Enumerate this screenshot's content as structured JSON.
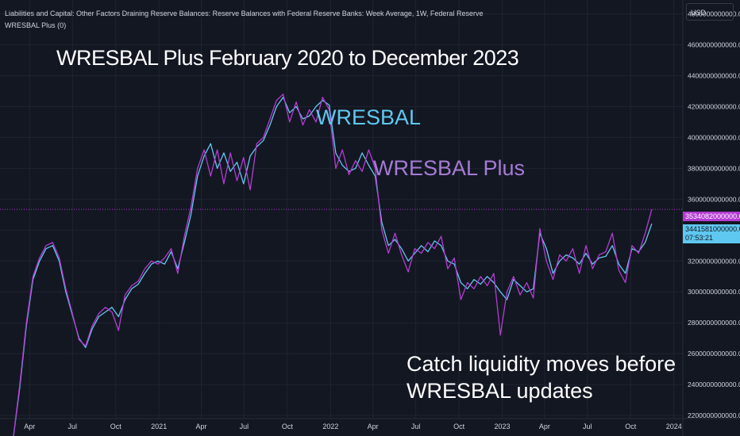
{
  "header": {
    "series_title": "Liabilities and Capital: Other Factors Draining Reserve Balances: Reserve Balances with Federal Reserve Banks: Week Average, 1W, Federal Reserve",
    "indicator_title": "WRESBAL Plus (0)"
  },
  "annotations": {
    "title": "WRESBAL Plus February 2020 to December 2023",
    "wresbal_label": "WRESBAL",
    "plus_label": "WRESBAL Plus",
    "tagline_line1": "Catch liquidity moves before",
    "tagline_line2": "WRESBAL updates"
  },
  "price_scale": {
    "currency": "USD",
    "plus_last_value": "3534082000000.0000",
    "wresbal_last_value": "3441581000000.0000",
    "countdown": "07:53:21"
  },
  "colors": {
    "background": "#131722",
    "wresbal": "#5fc8f0",
    "plus": "#b43cd2",
    "plus_label": "#a57bd5",
    "grid": "#1f2431"
  },
  "chart_data": {
    "type": "line",
    "title": "WRESBAL Plus February 2020 to December 2023",
    "x_ticks": [
      "Apr",
      "Jul",
      "Oct",
      "2021",
      "Apr",
      "Jul",
      "Oct",
      "2022",
      "Apr",
      "Jul",
      "Oct",
      "2023",
      "Apr",
      "Jul",
      "Oct",
      "2024"
    ],
    "x_tick_dates": [
      "2020-04-01",
      "2020-07-01",
      "2020-10-01",
      "2021-01-01",
      "2021-04-01",
      "2021-07-01",
      "2021-10-01",
      "2022-01-01",
      "2022-04-01",
      "2022-07-01",
      "2022-10-01",
      "2023-01-01",
      "2023-04-01",
      "2023-07-01",
      "2023-10-01",
      "2024-01-01"
    ],
    "y_ticks": [
      "2200000000000.0000",
      "2400000000000.0000",
      "2600000000000.0000",
      "2800000000000.0000",
      "3000000000000.0000",
      "3200000000000.0000",
      "3400000000000.0000",
      "3600000000000.0000",
      "3800000000000.0000",
      "4000000000000.0000",
      "4200000000000.0000",
      "4400000000000.0000",
      "4600000000000.0000",
      "4800000000000.0000"
    ],
    "ylim": [
      2180000000000,
      4890000000000
    ],
    "grid": true,
    "series": [
      {
        "name": "WRESBAL",
        "color": "#5fc8f0",
        "points": [
          [
            "2020-02-26",
            2050000000000
          ],
          [
            "2020-03-11",
            2380000000000
          ],
          [
            "2020-03-25",
            2780000000000
          ],
          [
            "2020-04-08",
            3080000000000
          ],
          [
            "2020-04-22",
            3200000000000
          ],
          [
            "2020-05-06",
            3280000000000
          ],
          [
            "2020-05-20",
            3300000000000
          ],
          [
            "2020-06-03",
            3200000000000
          ],
          [
            "2020-06-17",
            3000000000000
          ],
          [
            "2020-07-01",
            2850000000000
          ],
          [
            "2020-07-15",
            2700000000000
          ],
          [
            "2020-07-29",
            2640000000000
          ],
          [
            "2020-08-12",
            2760000000000
          ],
          [
            "2020-08-26",
            2840000000000
          ],
          [
            "2020-09-09",
            2870000000000
          ],
          [
            "2020-09-23",
            2900000000000
          ],
          [
            "2020-10-07",
            2840000000000
          ],
          [
            "2020-10-21",
            2950000000000
          ],
          [
            "2020-11-04",
            3020000000000
          ],
          [
            "2020-11-18",
            3050000000000
          ],
          [
            "2020-12-02",
            3120000000000
          ],
          [
            "2020-12-16",
            3180000000000
          ],
          [
            "2020-12-30",
            3200000000000
          ],
          [
            "2021-01-13",
            3180000000000
          ],
          [
            "2021-01-27",
            3260000000000
          ],
          [
            "2021-02-10",
            3150000000000
          ],
          [
            "2021-02-24",
            3320000000000
          ],
          [
            "2021-03-10",
            3500000000000
          ],
          [
            "2021-03-24",
            3750000000000
          ],
          [
            "2021-04-07",
            3880000000000
          ],
          [
            "2021-04-21",
            3960000000000
          ],
          [
            "2021-05-05",
            3800000000000
          ],
          [
            "2021-05-19",
            3900000000000
          ],
          [
            "2021-06-02",
            3780000000000
          ],
          [
            "2021-06-16",
            3840000000000
          ],
          [
            "2021-06-30",
            3700000000000
          ],
          [
            "2021-07-14",
            3880000000000
          ],
          [
            "2021-07-28",
            3940000000000
          ],
          [
            "2021-08-11",
            3980000000000
          ],
          [
            "2021-08-25",
            4080000000000
          ],
          [
            "2021-09-08",
            4200000000000
          ],
          [
            "2021-09-22",
            4260000000000
          ],
          [
            "2021-10-06",
            4160000000000
          ],
          [
            "2021-10-20",
            4200000000000
          ],
          [
            "2021-11-03",
            4120000000000
          ],
          [
            "2021-11-17",
            4140000000000
          ],
          [
            "2021-12-01",
            4200000000000
          ],
          [
            "2021-12-15",
            4240000000000
          ],
          [
            "2021-12-29",
            4210000000000
          ],
          [
            "2022-01-12",
            3900000000000
          ],
          [
            "2022-01-26",
            3820000000000
          ],
          [
            "2022-02-09",
            3780000000000
          ],
          [
            "2022-02-23",
            3800000000000
          ],
          [
            "2022-03-09",
            3900000000000
          ],
          [
            "2022-03-23",
            3820000000000
          ],
          [
            "2022-04-06",
            3750000000000
          ],
          [
            "2022-04-20",
            3450000000000
          ],
          [
            "2022-05-04",
            3300000000000
          ],
          [
            "2022-05-18",
            3340000000000
          ],
          [
            "2022-06-01",
            3280000000000
          ],
          [
            "2022-06-15",
            3200000000000
          ],
          [
            "2022-06-29",
            3250000000000
          ],
          [
            "2022-07-13",
            3300000000000
          ],
          [
            "2022-07-27",
            3260000000000
          ],
          [
            "2022-08-10",
            3330000000000
          ],
          [
            "2022-08-24",
            3300000000000
          ],
          [
            "2022-09-07",
            3200000000000
          ],
          [
            "2022-09-21",
            3180000000000
          ],
          [
            "2022-10-05",
            3060000000000
          ],
          [
            "2022-10-19",
            3020000000000
          ],
          [
            "2022-11-02",
            3080000000000
          ],
          [
            "2022-11-16",
            3050000000000
          ],
          [
            "2022-11-30",
            3100000000000
          ],
          [
            "2022-12-14",
            3060000000000
          ],
          [
            "2022-12-28",
            3000000000000
          ],
          [
            "2023-01-11",
            2950000000000
          ],
          [
            "2023-01-25",
            3080000000000
          ],
          [
            "2023-02-08",
            3040000000000
          ],
          [
            "2023-02-22",
            3000000000000
          ],
          [
            "2023-03-08",
            3020000000000
          ],
          [
            "2023-03-22",
            3380000000000
          ],
          [
            "2023-04-05",
            3280000000000
          ],
          [
            "2023-04-19",
            3120000000000
          ],
          [
            "2023-05-03",
            3200000000000
          ],
          [
            "2023-05-17",
            3240000000000
          ],
          [
            "2023-05-31",
            3220000000000
          ],
          [
            "2023-06-14",
            3180000000000
          ],
          [
            "2023-06-28",
            3250000000000
          ],
          [
            "2023-07-12",
            3180000000000
          ],
          [
            "2023-07-26",
            3220000000000
          ],
          [
            "2023-08-09",
            3230000000000
          ],
          [
            "2023-08-23",
            3300000000000
          ],
          [
            "2023-09-06",
            3180000000000
          ],
          [
            "2023-09-20",
            3120000000000
          ],
          [
            "2023-10-04",
            3280000000000
          ],
          [
            "2023-10-18",
            3260000000000
          ],
          [
            "2023-11-01",
            3320000000000
          ],
          [
            "2023-11-15",
            3441581000000
          ]
        ]
      },
      {
        "name": "WRESBAL Plus",
        "color": "#b43cd2",
        "points": [
          [
            "2020-02-26",
            2050000000000
          ],
          [
            "2020-03-11",
            2400000000000
          ],
          [
            "2020-03-25",
            2800000000000
          ],
          [
            "2020-04-08",
            3100000000000
          ],
          [
            "2020-04-22",
            3220000000000
          ],
          [
            "2020-05-06",
            3300000000000
          ],
          [
            "2020-05-20",
            3320000000000
          ],
          [
            "2020-06-03",
            3220000000000
          ],
          [
            "2020-06-17",
            3020000000000
          ],
          [
            "2020-07-01",
            2860000000000
          ],
          [
            "2020-07-15",
            2690000000000
          ],
          [
            "2020-07-29",
            2650000000000
          ],
          [
            "2020-08-12",
            2780000000000
          ],
          [
            "2020-08-26",
            2860000000000
          ],
          [
            "2020-09-09",
            2900000000000
          ],
          [
            "2020-09-23",
            2870000000000
          ],
          [
            "2020-10-07",
            2750000000000
          ],
          [
            "2020-10-21",
            2980000000000
          ],
          [
            "2020-11-04",
            3040000000000
          ],
          [
            "2020-11-18",
            3070000000000
          ],
          [
            "2020-12-02",
            3150000000000
          ],
          [
            "2020-12-16",
            3200000000000
          ],
          [
            "2020-12-30",
            3180000000000
          ],
          [
            "2021-01-13",
            3220000000000
          ],
          [
            "2021-01-27",
            3280000000000
          ],
          [
            "2021-02-10",
            3120000000000
          ],
          [
            "2021-02-24",
            3360000000000
          ],
          [
            "2021-03-10",
            3550000000000
          ],
          [
            "2021-03-24",
            3800000000000
          ],
          [
            "2021-04-07",
            3920000000000
          ],
          [
            "2021-04-21",
            3750000000000
          ],
          [
            "2021-05-05",
            3920000000000
          ],
          [
            "2021-05-19",
            3700000000000
          ],
          [
            "2021-06-02",
            3900000000000
          ],
          [
            "2021-06-16",
            3720000000000
          ],
          [
            "2021-06-30",
            3870000000000
          ],
          [
            "2021-07-14",
            3660000000000
          ],
          [
            "2021-07-28",
            3960000000000
          ],
          [
            "2021-08-11",
            4000000000000
          ],
          [
            "2021-08-25",
            4120000000000
          ],
          [
            "2021-09-08",
            4240000000000
          ],
          [
            "2021-09-22",
            4280000000000
          ],
          [
            "2021-10-06",
            4100000000000
          ],
          [
            "2021-10-20",
            4230000000000
          ],
          [
            "2021-11-03",
            4080000000000
          ],
          [
            "2021-11-17",
            4180000000000
          ],
          [
            "2021-12-01",
            4100000000000
          ],
          [
            "2021-12-15",
            4260000000000
          ],
          [
            "2021-12-29",
            4180000000000
          ],
          [
            "2022-01-12",
            3800000000000
          ],
          [
            "2022-01-26",
            3920000000000
          ],
          [
            "2022-02-09",
            3760000000000
          ],
          [
            "2022-02-23",
            3850000000000
          ],
          [
            "2022-03-09",
            3780000000000
          ],
          [
            "2022-03-23",
            3920000000000
          ],
          [
            "2022-04-06",
            3800000000000
          ],
          [
            "2022-04-20",
            3400000000000
          ],
          [
            "2022-05-04",
            3250000000000
          ],
          [
            "2022-05-18",
            3380000000000
          ],
          [
            "2022-06-01",
            3240000000000
          ],
          [
            "2022-06-15",
            3130000000000
          ],
          [
            "2022-06-29",
            3280000000000
          ],
          [
            "2022-07-13",
            3250000000000
          ],
          [
            "2022-07-27",
            3320000000000
          ],
          [
            "2022-08-10",
            3280000000000
          ],
          [
            "2022-08-24",
            3360000000000
          ],
          [
            "2022-09-07",
            3150000000000
          ],
          [
            "2022-09-21",
            3220000000000
          ],
          [
            "2022-10-05",
            2950000000000
          ],
          [
            "2022-10-19",
            3060000000000
          ],
          [
            "2022-11-02",
            3020000000000
          ],
          [
            "2022-11-16",
            3100000000000
          ],
          [
            "2022-11-30",
            3040000000000
          ],
          [
            "2022-12-14",
            3120000000000
          ],
          [
            "2022-12-28",
            2720000000000
          ],
          [
            "2023-01-11",
            3000000000000
          ],
          [
            "2023-01-25",
            3100000000000
          ],
          [
            "2023-02-08",
            2980000000000
          ],
          [
            "2023-02-22",
            3060000000000
          ],
          [
            "2023-03-08",
            2960000000000
          ],
          [
            "2023-03-22",
            3410000000000
          ],
          [
            "2023-04-05",
            3200000000000
          ],
          [
            "2023-04-19",
            3080000000000
          ],
          [
            "2023-05-03",
            3240000000000
          ],
          [
            "2023-05-17",
            3200000000000
          ],
          [
            "2023-05-31",
            3280000000000
          ],
          [
            "2023-06-14",
            3120000000000
          ],
          [
            "2023-06-28",
            3300000000000
          ],
          [
            "2023-07-12",
            3150000000000
          ],
          [
            "2023-07-26",
            3240000000000
          ],
          [
            "2023-08-09",
            3260000000000
          ],
          [
            "2023-08-23",
            3380000000000
          ],
          [
            "2023-09-06",
            3140000000000
          ],
          [
            "2023-09-20",
            3060000000000
          ],
          [
            "2023-10-04",
            3300000000000
          ],
          [
            "2023-10-18",
            3250000000000
          ],
          [
            "2023-11-01",
            3380000000000
          ],
          [
            "2023-11-15",
            3534082000000
          ]
        ]
      }
    ]
  }
}
